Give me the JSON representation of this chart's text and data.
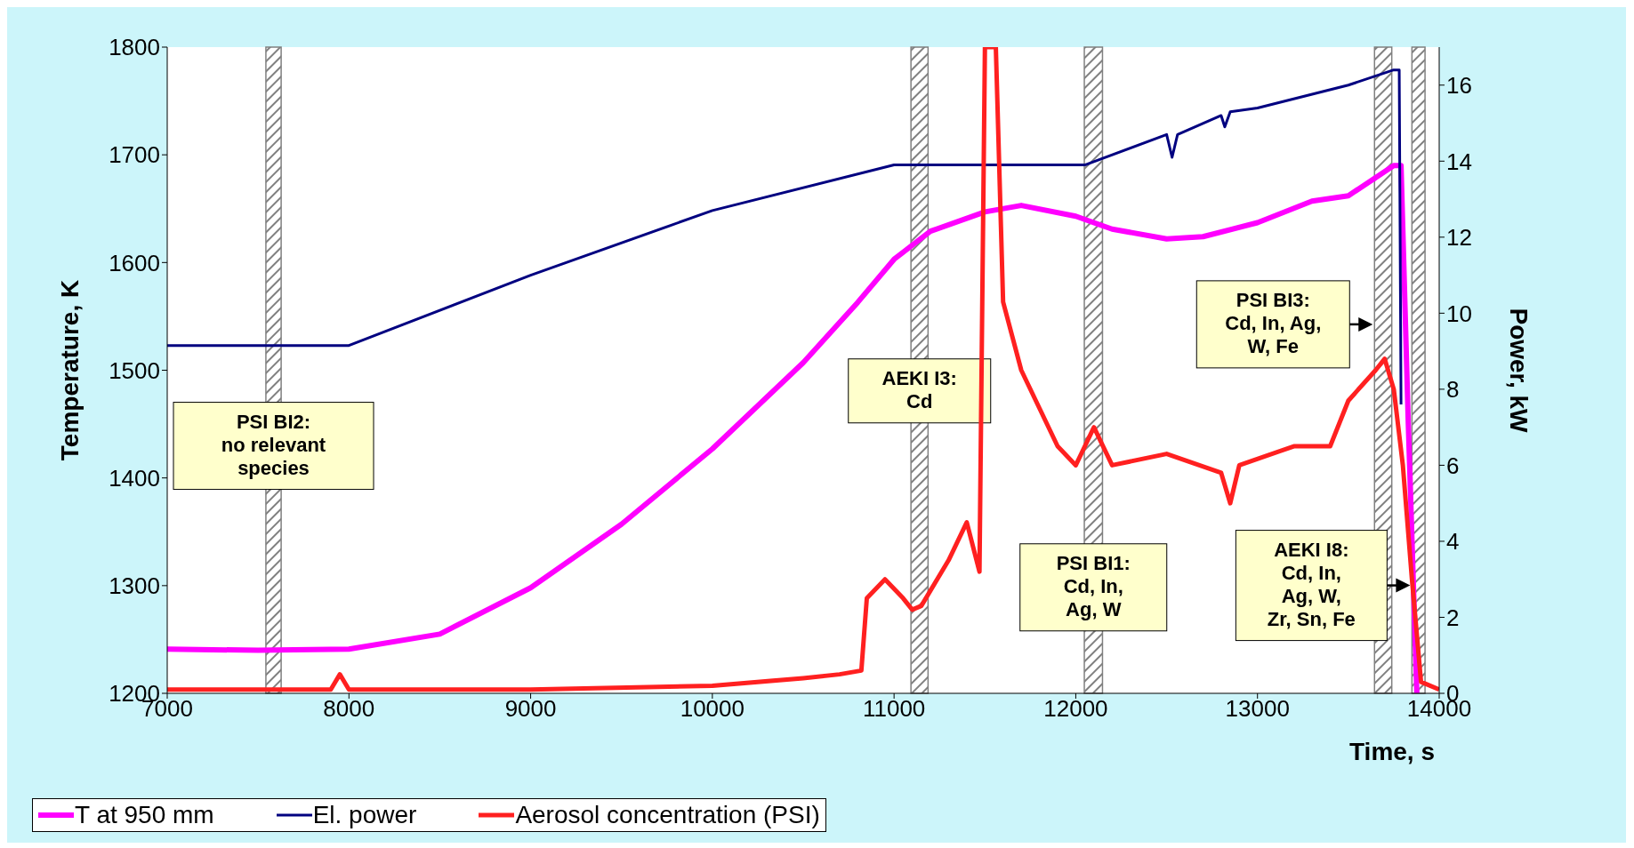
{
  "chart_data": {
    "type": "line",
    "xlabel": "Time, s",
    "ylabel": "Temperature, K",
    "y2label": "Power, kW",
    "xlim": [
      7000,
      14000
    ],
    "xticks": [
      7000,
      8000,
      9000,
      10000,
      11000,
      12000,
      13000,
      14000
    ],
    "ylim": [
      1200,
      1800
    ],
    "yticks": [
      1200,
      1300,
      1400,
      1500,
      1600,
      1700,
      1800
    ],
    "y2lim": [
      0,
      17
    ],
    "y2ticks": [
      0,
      2,
      4,
      6,
      8,
      10,
      12,
      14,
      16
    ],
    "grid": false,
    "legend": "bottom",
    "marker": "none",
    "line_style": "solid",
    "series": [
      {
        "name": "T at 950 mm",
        "color": "#ff00ff",
        "axis": "y",
        "x": [
          7000,
          7500,
          8000,
          8500,
          9000,
          9500,
          10000,
          10500,
          10800,
          11000,
          11200,
          11500,
          11700,
          12000,
          12200,
          12500,
          12700,
          13000,
          13300,
          13500,
          13750,
          13790,
          13830,
          13877
        ],
        "values": [
          1241,
          1240,
          1241,
          1255,
          1298,
          1357,
          1427,
          1507,
          1563,
          1603,
          1629,
          1647,
          1653,
          1643,
          1631,
          1622,
          1624,
          1637,
          1657,
          1662,
          1690,
          1690,
          1450,
          1200
        ]
      },
      {
        "name": "El. power",
        "color": "#000080",
        "axis": "y2",
        "x": [
          7000,
          8000,
          9000,
          10000,
          11000,
          11500,
          12050,
          12500,
          12530,
          12560,
          12800,
          12820,
          12850,
          13000,
          13500,
          13750,
          13780,
          13790
        ],
        "values": [
          9.15,
          9.15,
          11.0,
          12.7,
          13.9,
          13.9,
          13.9,
          14.7,
          14.1,
          14.7,
          15.2,
          14.9,
          15.3,
          15.4,
          16.0,
          16.4,
          16.4,
          7.6
        ]
      },
      {
        "name": "Aerosol concentration (PSI)",
        "color": "#ff2020",
        "axis": "y2",
        "x": [
          7000,
          7500,
          7900,
          7950,
          8000,
          9000,
          10000,
          10500,
          10700,
          10820,
          10850,
          10950,
          11050,
          11100,
          11150,
          11300,
          11400,
          11470,
          11500,
          11560,
          11600,
          11700,
          11800,
          11900,
          12000,
          12100,
          12200,
          12500,
          12800,
          12850,
          12900,
          13200,
          13400,
          13500,
          13650,
          13700,
          13750,
          13800,
          13850,
          13900,
          14000
        ],
        "values": [
          0.1,
          0.1,
          0.1,
          0.5,
          0.1,
          0.1,
          0.2,
          0.4,
          0.5,
          0.6,
          2.5,
          3.0,
          2.5,
          2.2,
          2.3,
          3.5,
          4.5,
          3.2,
          17,
          17,
          10.3,
          8.5,
          7.5,
          6.5,
          6.0,
          7.0,
          6.0,
          6.3,
          5.8,
          5.0,
          6.0,
          6.5,
          6.5,
          7.7,
          8.5,
          8.8,
          8.0,
          6.0,
          3.0,
          0.3,
          0.1
        ]
      }
    ],
    "bands": [
      {
        "axis": "x",
        "from": 7543,
        "to": 7627,
        "color": "#808080",
        "label": "PSI BI2:\nno relevant\nspecies"
      },
      {
        "axis": "x",
        "from": 11093,
        "to": 11187,
        "color": "#808080",
        "label": "AEKI I3:\nCd"
      },
      {
        "axis": "x",
        "from": 12047,
        "to": 12147,
        "color": "#808080",
        "label": "PSI BI1:\nCd, In,\nAg, W"
      },
      {
        "axis": "x",
        "from": 13644,
        "to": 13739,
        "color": "#808080",
        "label": "PSI BI3:\nCd, In, Ag,\nW,  Fe"
      },
      {
        "axis": "x",
        "from": 13850,
        "to": 13922,
        "color": "#808080",
        "label": "AEKI I8:\nCd, In,\nAg, W,\nZr, Sn, Fe"
      }
    ]
  }
}
